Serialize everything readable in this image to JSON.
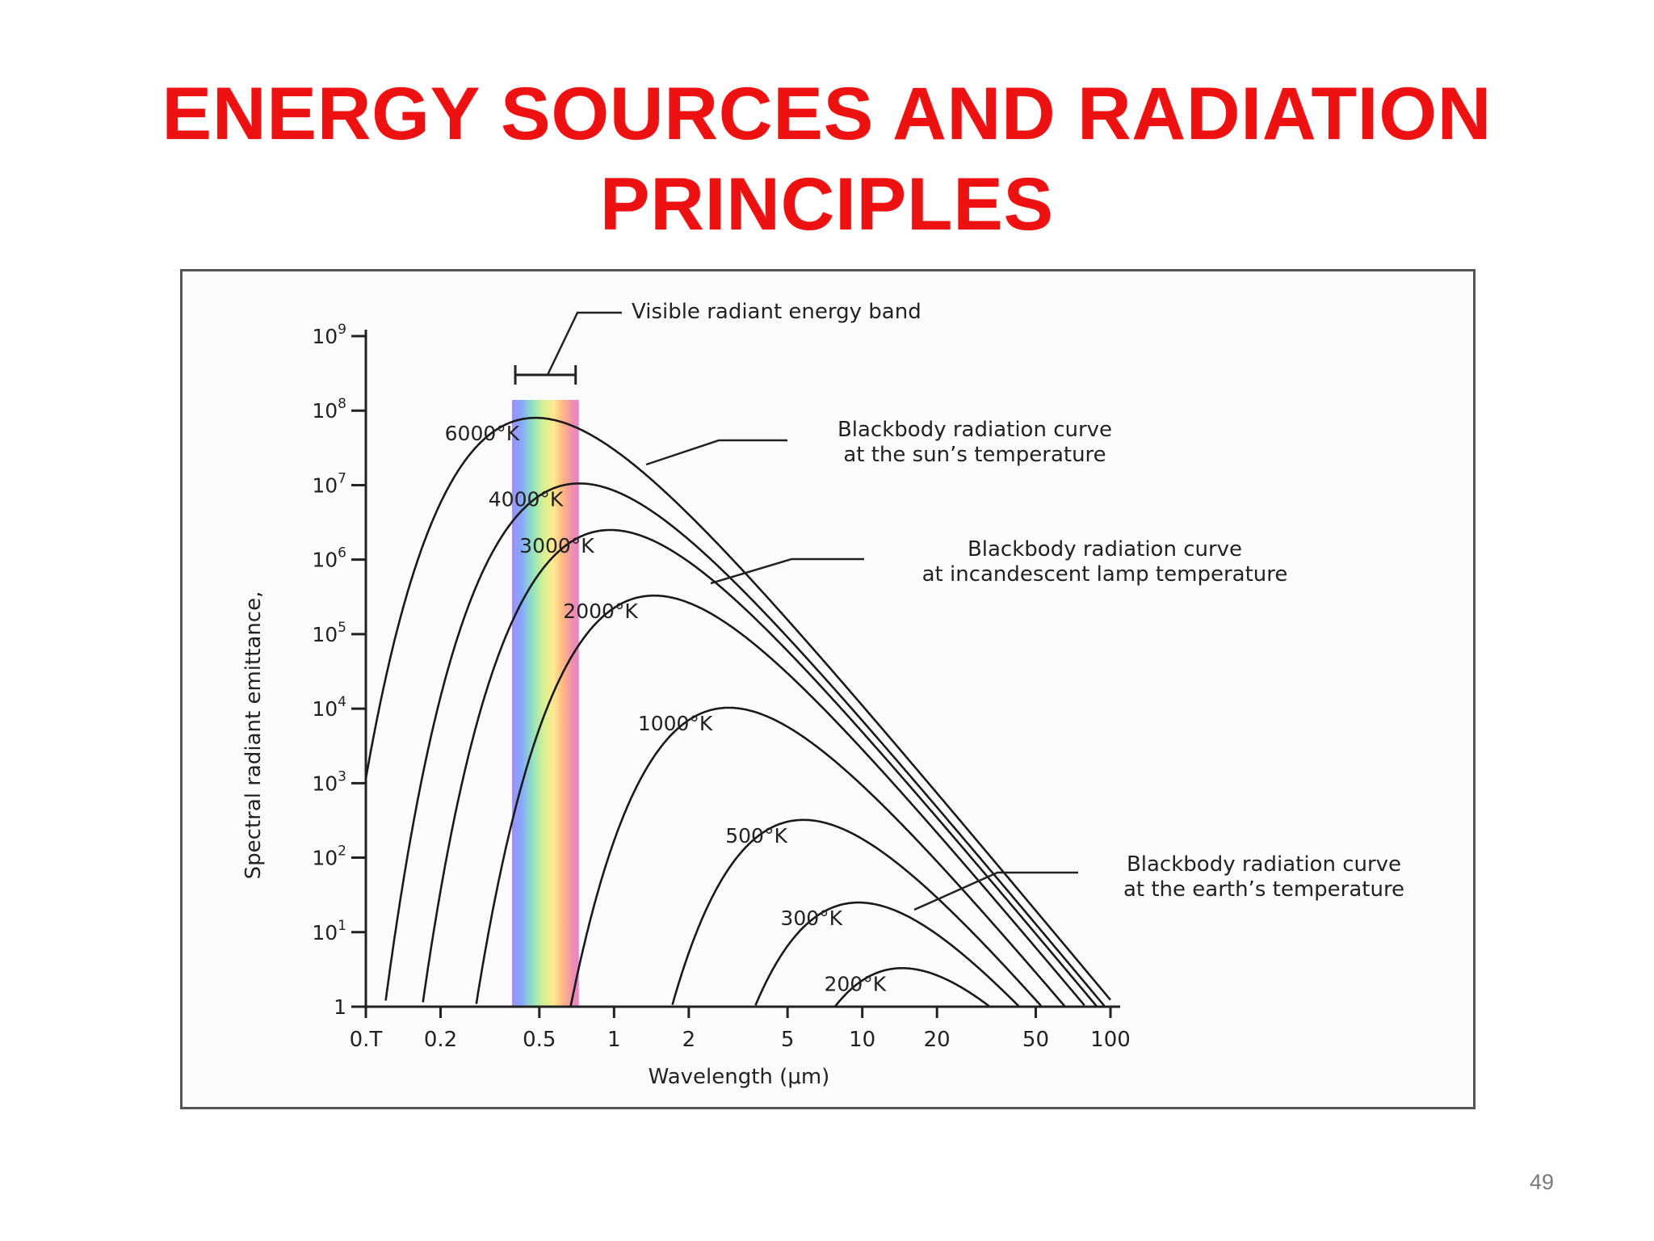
{
  "slide": {
    "title_line1": "ENERGY SOURCES AND RADIATION",
    "title_line2": "PRINCIPLES",
    "page_number": "49",
    "title_color": "#ee1111"
  },
  "chart_data": {
    "type": "line",
    "title": "",
    "xlabel": "Wavelength (μm)",
    "ylabel": "Spectral radiant emittance,",
    "x_scale": "log",
    "y_scale": "log",
    "xlim": [
      0.1,
      100
    ],
    "ylim": [
      1,
      1000000000
    ],
    "x_ticks": [
      {
        "value": 0.1,
        "label": "0.T"
      },
      {
        "value": 0.2,
        "label": "0.2"
      },
      {
        "value": 0.5,
        "label": "0.5"
      },
      {
        "value": 1,
        "label": "1"
      },
      {
        "value": 2,
        "label": "2"
      },
      {
        "value": 5,
        "label": "5"
      },
      {
        "value": 10,
        "label": "10"
      },
      {
        "value": 20,
        "label": "20"
      },
      {
        "value": 50,
        "label": "50"
      },
      {
        "value": 100,
        "label": "100"
      }
    ],
    "y_ticks": [
      {
        "value": 1,
        "base": "1",
        "exp": ""
      },
      {
        "value": 10,
        "base": "10",
        "exp": "1"
      },
      {
        "value": 100,
        "base": "10",
        "exp": "2"
      },
      {
        "value": 1000,
        "base": "10",
        "exp": "3"
      },
      {
        "value": 10000,
        "base": "10",
        "exp": "4"
      },
      {
        "value": 100000,
        "base": "10",
        "exp": "5"
      },
      {
        "value": 1000000,
        "base": "10",
        "exp": "6"
      },
      {
        "value": 10000000,
        "base": "10",
        "exp": "7"
      },
      {
        "value": 100000000,
        "base": "10",
        "exp": "8"
      },
      {
        "value": 1000000000,
        "base": "10",
        "exp": "9"
      }
    ],
    "series": [
      {
        "name": "6000°K",
        "temperature": 6000
      },
      {
        "name": "4000°K",
        "temperature": 4000
      },
      {
        "name": "3000°K",
        "temperature": 3000
      },
      {
        "name": "2000°K",
        "temperature": 2000
      },
      {
        "name": "1000°K",
        "temperature": 1000
      },
      {
        "name": "500°K",
        "temperature": 500
      },
      {
        "name": "300°K",
        "temperature": 300
      },
      {
        "name": "200°K",
        "temperature": 200
      }
    ],
    "visible_band_um": [
      0.4,
      0.7
    ],
    "annotations": [
      {
        "id": "visible",
        "lines": [
          "Visible radiant energy band"
        ]
      },
      {
        "id": "sun",
        "lines": [
          "Blackbody radiation curve",
          "at the sun’s temperature"
        ]
      },
      {
        "id": "lamp",
        "lines": [
          "Blackbody radiation curve",
          "at incandescent lamp temperature"
        ]
      },
      {
        "id": "earth",
        "lines": [
          "Blackbody radiation curve",
          "at the earth’s temperature"
        ]
      }
    ],
    "grid": false,
    "legend": "none"
  }
}
